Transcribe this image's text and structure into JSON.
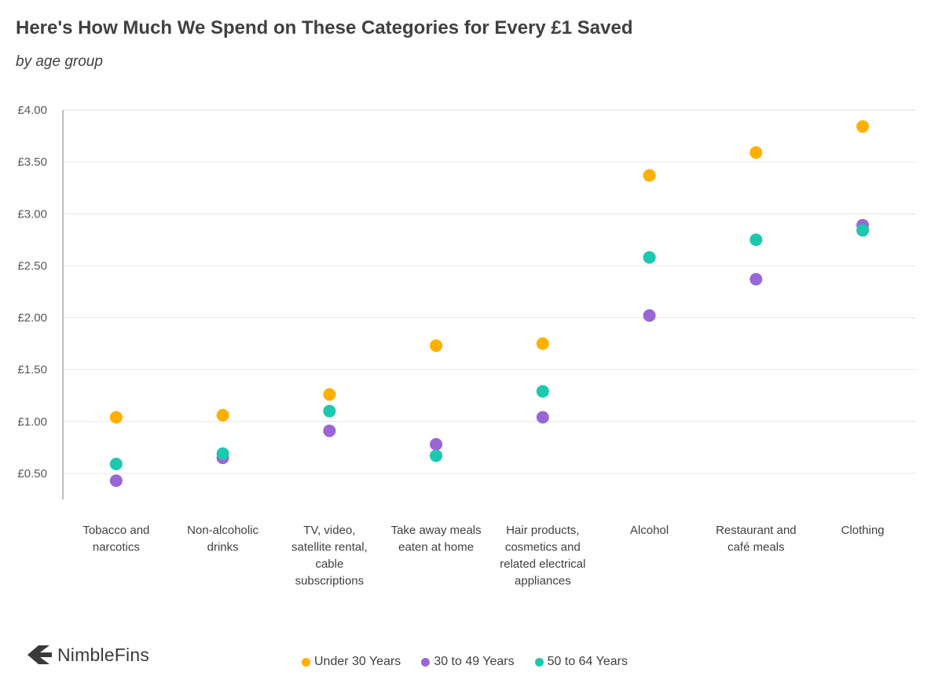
{
  "header": {
    "title": "Here's How Much We Spend on These Categories for Every £1 Saved",
    "subtitle": "by age group"
  },
  "brand": {
    "name": "NimbleFins"
  },
  "colors": {
    "under_30": "#FFB000",
    "age_30_49": "#9966D6",
    "age_50_64": "#1CC8B0",
    "grid": "#E6E6E6",
    "axis": "#A6A6A6"
  },
  "chart_data": {
    "type": "scatter",
    "title": "Here's How Much We Spend on These Categories for Every £1 Saved",
    "subtitle": "by age group",
    "xlabel": "",
    "ylabel": "",
    "ylim": [
      0.25,
      4.0
    ],
    "yticks": [
      "£0.50",
      "£1.00",
      "£1.50",
      "£2.00",
      "£2.50",
      "£3.00",
      "£3.50",
      "£4.00"
    ],
    "ytick_values": [
      0.5,
      1.0,
      1.5,
      2.0,
      2.5,
      3.0,
      3.5,
      4.0
    ],
    "grid": true,
    "legend_position": "bottom",
    "categories": [
      [
        "Tobacco and",
        "narcotics"
      ],
      [
        "Non-alcoholic",
        "drinks"
      ],
      [
        "TV, video,",
        "satellite rental,",
        "cable",
        "subscriptions"
      ],
      [
        "Take away meals",
        "eaten at home"
      ],
      [
        "Hair products,",
        "cosmetics and",
        "related electrical",
        "appliances"
      ],
      [
        "Alcohol"
      ],
      [
        "Restaurant and",
        "café meals"
      ],
      [
        "Clothing"
      ]
    ],
    "series": [
      {
        "name": "Under 30 Years",
        "color": "#FFB000",
        "values": [
          1.04,
          1.06,
          1.26,
          1.73,
          1.75,
          3.37,
          3.59,
          3.84
        ]
      },
      {
        "name": "30 to 49 Years",
        "color": "#9966D6",
        "values": [
          0.43,
          0.65,
          0.91,
          0.78,
          1.04,
          2.02,
          2.37,
          2.89
        ]
      },
      {
        "name": "50 to 64 Years",
        "color": "#1CC8B0",
        "values": [
          0.59,
          0.69,
          1.1,
          0.67,
          1.29,
          2.58,
          2.75,
          2.84
        ]
      }
    ]
  }
}
